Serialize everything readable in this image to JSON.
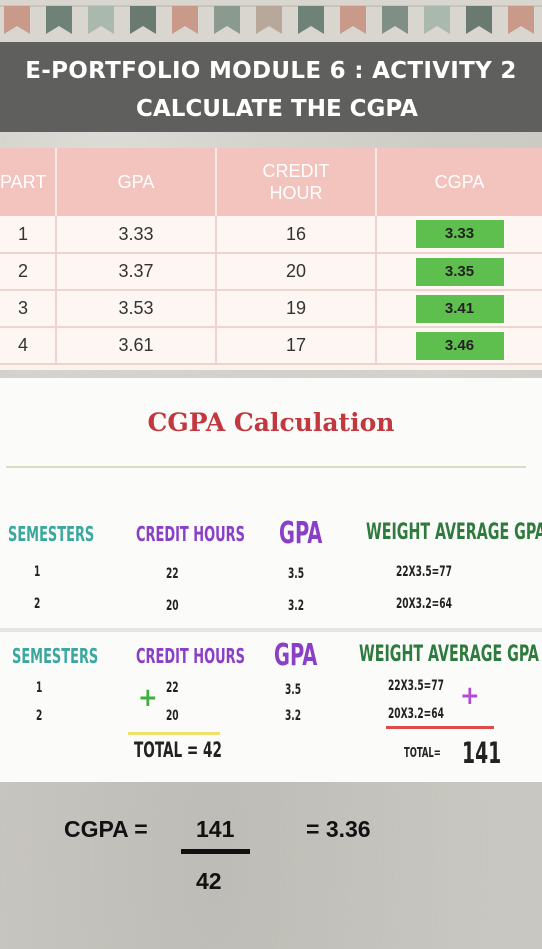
{
  "banner": {
    "line1": "E-PORTFOLIO MODULE 6 : ACTIVITY 2",
    "line2": "CALCULATE THE  CGPA"
  },
  "table": {
    "headers": [
      "PART",
      "GPA",
      "CREDIT HOUR",
      "CGPA"
    ],
    "rows": [
      {
        "part": "1",
        "gpa": "3.33",
        "credit": "16",
        "cgpa": "3.33"
      },
      {
        "part": "2",
        "gpa": "3.37",
        "credit": "20",
        "cgpa": "3.35"
      },
      {
        "part": "3",
        "gpa": "3.53",
        "credit": "19",
        "cgpa": "3.41"
      },
      {
        "part": "4",
        "gpa": "3.61",
        "credit": "17",
        "cgpa": "3.46"
      }
    ],
    "highlight_color": "#5fbf4e",
    "header_color": "#f3c3be"
  },
  "calc": {
    "title": "CGPA Calculation",
    "headers": {
      "semesters": "SEMESTERS",
      "credit_hours": "CREDIT HOURS",
      "gpa": "GPA",
      "wag": "WEIGHT AVERAGE GPA"
    },
    "rows": [
      {
        "sem": "1",
        "ch": "22",
        "gpa": "3.5",
        "wag": "22X3.5=77"
      },
      {
        "sem": "2",
        "ch": "20",
        "gpa": "3.2",
        "wag": "20X3.2=64"
      }
    ],
    "total_ch": "TOTAL = 42",
    "total_label": "TOTAL=",
    "total_value": "141",
    "plus": "+"
  },
  "formula": {
    "label": "CGPA =",
    "numerator": "141",
    "denominator": "42",
    "result": "= 3.36"
  }
}
